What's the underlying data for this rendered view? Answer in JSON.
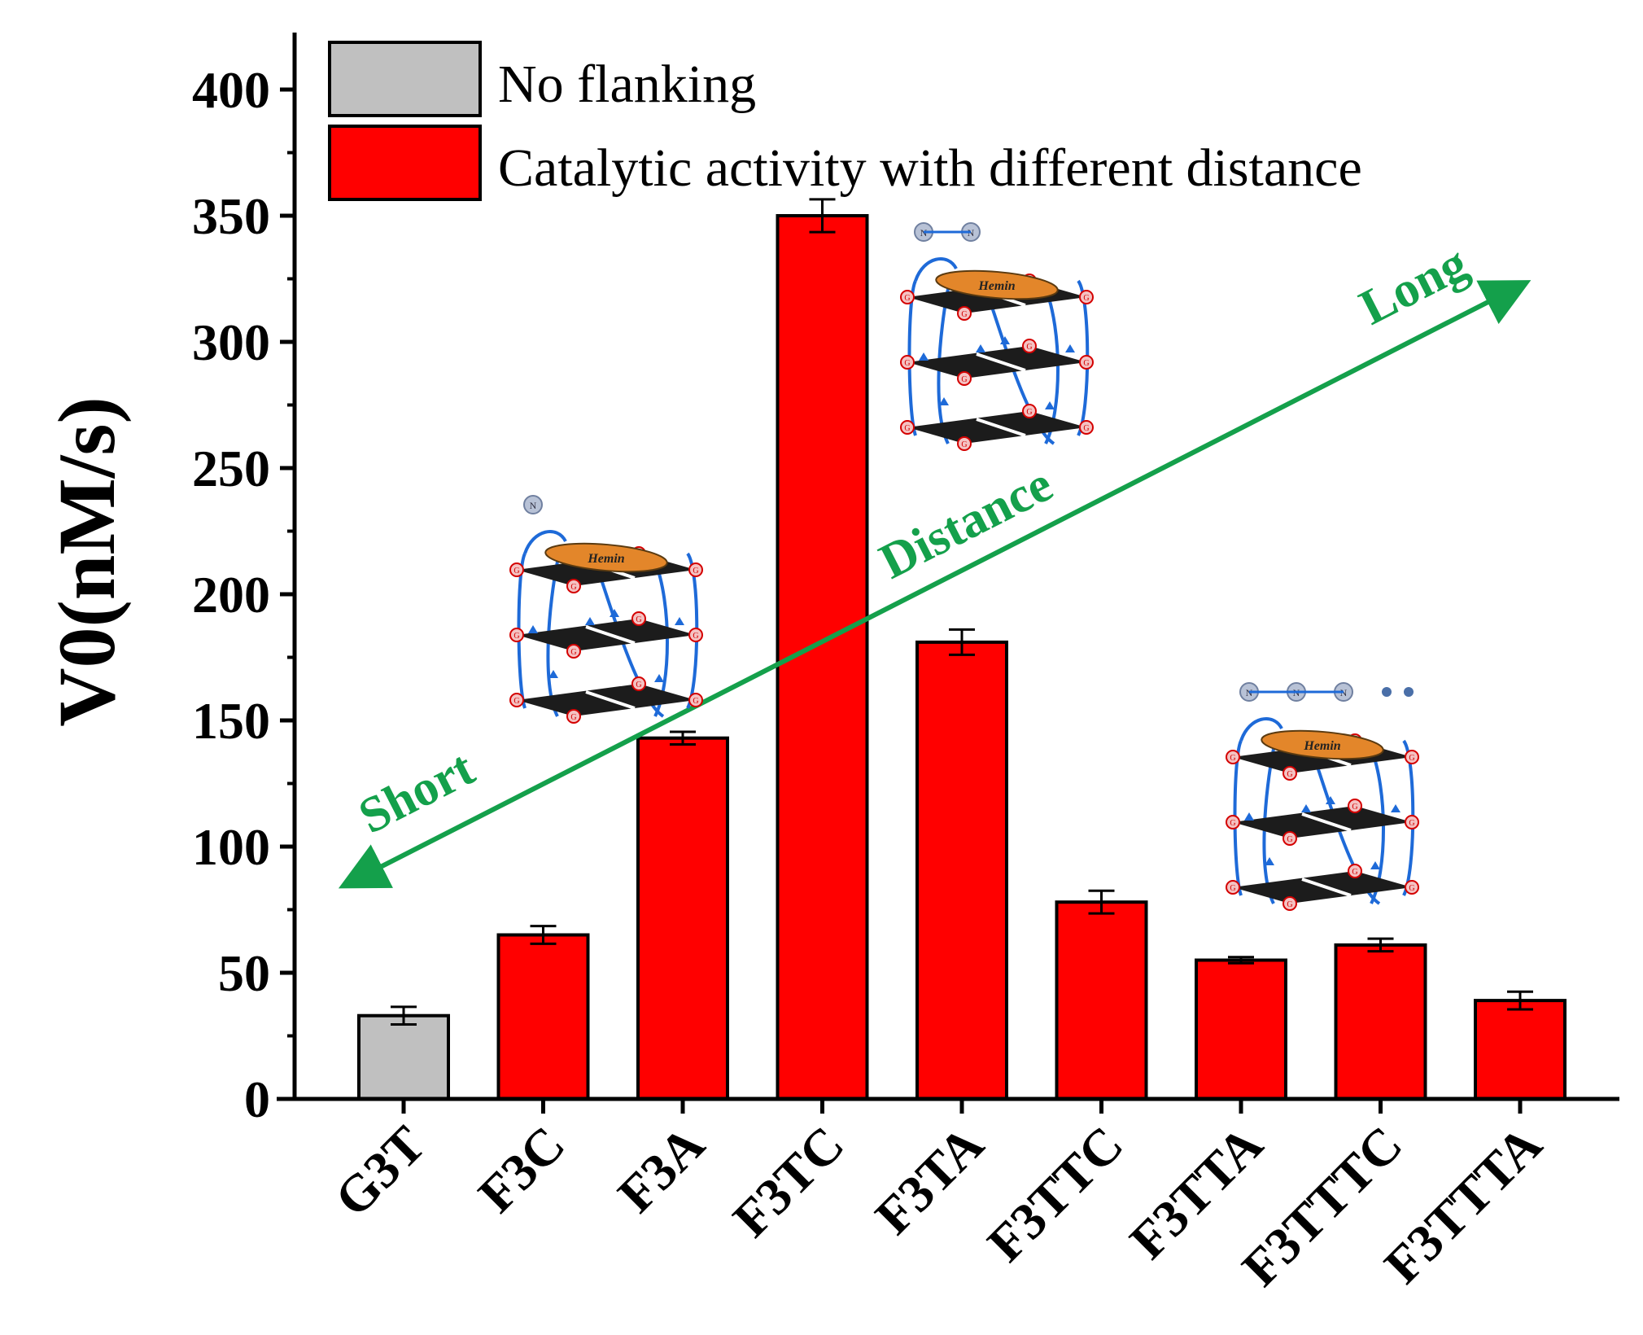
{
  "chart_data": {
    "type": "bar",
    "ylabel": "V0(nM/s)",
    "xlabel": "",
    "ylim": [
      0,
      420
    ],
    "yticks": [
      0,
      50,
      100,
      150,
      200,
      250,
      300,
      350,
      400
    ],
    "grid": false,
    "legend": {
      "position": "top-left",
      "entries": [
        {
          "label": "No flanking",
          "color": "#c0c0c0"
        },
        {
          "label": "Catalytic activity with different distance",
          "color": "#ff0000"
        }
      ]
    },
    "categories": [
      "G3T",
      "F3C",
      "F3A",
      "F3TC",
      "F3TA",
      "F3TTC",
      "F3TTA",
      "F3TTTC",
      "F3TTTA"
    ],
    "values": [
      33,
      65,
      143,
      350,
      181,
      78,
      55,
      61,
      39
    ],
    "errors": [
      3.5,
      3.5,
      2.5,
      6.5,
      5,
      4.5,
      1.2,
      2.5,
      3.5
    ],
    "groups": [
      "No flanking",
      "Catalytic activity with different distance",
      "Catalytic activity with different distance",
      "Catalytic activity with different distance",
      "Catalytic activity with different distance",
      "Catalytic activity with different distance",
      "Catalytic activity with different distance",
      "Catalytic activity with different distance",
      "Catalytic activity with different distance"
    ],
    "annotations": {
      "arrow_start": "Short",
      "arrow_middle": "Distance",
      "arrow_end": "Long",
      "arrow_color": "#14a04b"
    }
  },
  "diagram": {
    "hemin_label": "Hemin",
    "g_label": "G",
    "n_label": "N"
  }
}
